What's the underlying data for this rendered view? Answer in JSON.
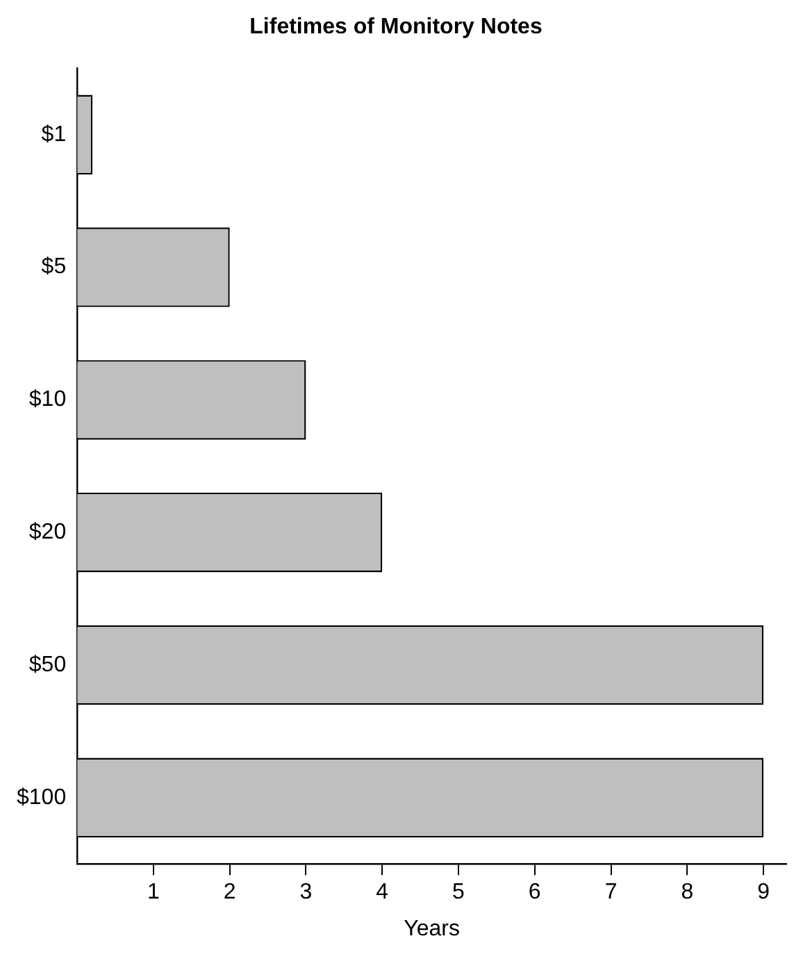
{
  "chart_data": {
    "type": "bar",
    "orientation": "horizontal",
    "title": "Lifetimes of Monitory Notes",
    "xlabel": "Years",
    "categories": [
      "$1",
      "$5",
      "$10",
      "$20",
      "$50",
      "$100"
    ],
    "values": [
      0.2,
      2,
      3,
      4,
      9,
      9
    ],
    "color": "#bfbfbf",
    "xlim": [
      0,
      9.3
    ],
    "xticks": [
      1,
      2,
      3,
      4,
      5,
      6,
      7,
      8,
      9
    ],
    "grid": false,
    "legend": false
  }
}
